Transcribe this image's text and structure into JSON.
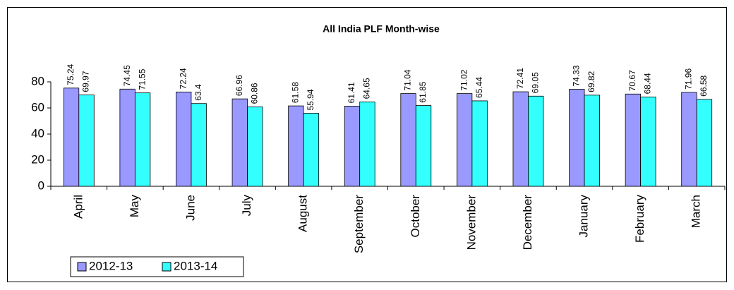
{
  "chart_data": {
    "type": "bar",
    "title": "All India PLF Month-wise",
    "categories": [
      "April",
      "May",
      "June",
      "July",
      "August",
      "September",
      "October",
      "November",
      "December",
      "January",
      "February",
      "March"
    ],
    "series": [
      {
        "name": "2012-13",
        "color": "#9999ff",
        "values": [
          75.24,
          74.45,
          72.24,
          66.96,
          61.58,
          61.41,
          71.04,
          71.02,
          72.41,
          74.33,
          70.67,
          71.96
        ]
      },
      {
        "name": "2013-14",
        "color": "#33ffff",
        "values": [
          69.97,
          71.55,
          63.4,
          60.86,
          55.94,
          64.65,
          61.85,
          65.44,
          69.05,
          69.82,
          68.44,
          66.58
        ]
      }
    ],
    "ylim": [
      0,
      80
    ],
    "yticks": [
      0,
      20,
      40,
      60,
      80
    ],
    "grid": false,
    "legend": "bottom-left"
  }
}
